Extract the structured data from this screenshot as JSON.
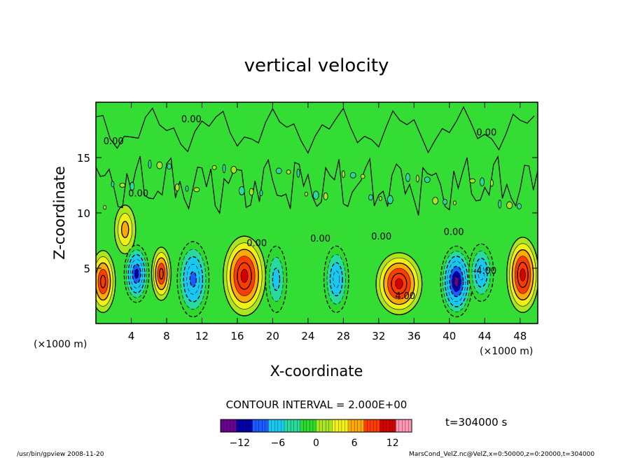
{
  "chart_data": {
    "type": "heatmap",
    "title": "vertical velocity",
    "xlabel": "X-coordinate",
    "ylabel": "Z-coordinate",
    "x_unit_label": "(×1000 m)",
    "y_unit_label": "(×1000 m)",
    "xlim": [
      0,
      50
    ],
    "ylim": [
      0,
      20
    ],
    "xticks": [
      "4",
      "8",
      "12",
      "16",
      "20",
      "24",
      "28",
      "32",
      "36",
      "40",
      "44",
      "48"
    ],
    "yticks": [
      "5",
      "10",
      "15"
    ],
    "contour_interval_text": "CONTOUR INTERVAL = 2.000E+00",
    "time_label": "t=304000 s",
    "colorbar": {
      "vmin": -15,
      "vmax": 15,
      "ticks": [
        "−12",
        "−6",
        "0",
        "6",
        "12"
      ],
      "colors": [
        "#6a008f",
        "#0000a8",
        "#1a5cff",
        "#19c8f0",
        "#28d9a0",
        "#2ed82e",
        "#a8e61e",
        "#f0f014",
        "#ffaa00",
        "#ff3c00",
        "#d20000",
        "#ff96b4"
      ]
    },
    "contour_labels": [
      {
        "text": "0.00",
        "x": 2.0,
        "z": 16.2
      },
      {
        "text": "0.00",
        "x": 10.8,
        "z": 18.2
      },
      {
        "text": "0.00",
        "x": 4.8,
        "z": 11.5
      },
      {
        "text": "0.00",
        "x": 18.2,
        "z": 7.0
      },
      {
        "text": "0.00",
        "x": 25.4,
        "z": 7.4
      },
      {
        "text": "0.00",
        "x": 32.3,
        "z": 7.6
      },
      {
        "text": "0.00",
        "x": 40.5,
        "z": 8.0
      },
      {
        "text": "0.00",
        "x": 44.2,
        "z": 17.0
      },
      {
        "text": "4.00",
        "x": 35.0,
        "z": 2.2
      },
      {
        "text": "-4.00",
        "x": 44.0,
        "z": 4.5
      }
    ],
    "cells": [
      {
        "x": 0.8,
        "z": 3.8,
        "v": 10,
        "rx": 1.4,
        "rz": 2.8
      },
      {
        "x": 3.3,
        "z": 8.5,
        "v": 6,
        "rx": 1.2,
        "rz": 2.2
      },
      {
        "x": 4.6,
        "z": 4.5,
        "v": -11,
        "rx": 1.4,
        "rz": 2.6
      },
      {
        "x": 7.4,
        "z": 4.5,
        "v": 9,
        "rx": 1.1,
        "rz": 2.4
      },
      {
        "x": 11.0,
        "z": 4.0,
        "v": -9,
        "rx": 1.8,
        "rz": 3.4
      },
      {
        "x": 16.8,
        "z": 4.3,
        "v": 11,
        "rx": 2.4,
        "rz": 3.6
      },
      {
        "x": 20.4,
        "z": 4.0,
        "v": -5,
        "rx": 1.2,
        "rz": 3.0
      },
      {
        "x": 27.2,
        "z": 4.0,
        "v": -7,
        "rx": 1.4,
        "rz": 3.0
      },
      {
        "x": 34.3,
        "z": 3.6,
        "v": 12,
        "rx": 2.6,
        "rz": 2.8
      },
      {
        "x": 40.8,
        "z": 3.8,
        "v": -14,
        "rx": 1.8,
        "rz": 3.2
      },
      {
        "x": 43.6,
        "z": 4.6,
        "v": -7,
        "rx": 1.4,
        "rz": 2.6
      },
      {
        "x": 48.3,
        "z": 4.4,
        "v": 11,
        "rx": 1.8,
        "rz": 3.4
      }
    ]
  },
  "footer": {
    "left": "/usr/bin/gpview  2008-11-20",
    "right": "MarsCond_VelZ.nc@VelZ,x=0:50000,z=0:20000,t=304000"
  }
}
